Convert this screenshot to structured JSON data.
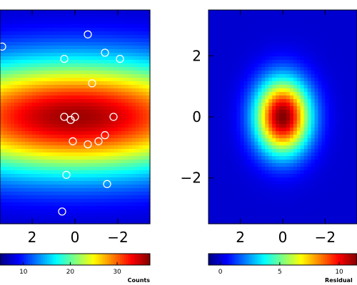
{
  "chart_data": [
    {
      "type": "heatmap",
      "title": "",
      "xlabel": "",
      "ylabel": "",
      "xlim": [
        3.5,
        -3.5
      ],
      "ylim": [
        -3.5,
        3.5
      ],
      "x_ticks": [
        2,
        0,
        -2
      ],
      "x_tick_labels": [
        "2",
        "0",
        "−2"
      ],
      "y_ticks": [],
      "y_tick_labels": [],
      "colormap": "jet",
      "colorbar": {
        "label": "Counts",
        "range": [
          5,
          37
        ],
        "ticks": [
          10,
          20,
          30
        ],
        "tick_labels": [
          "10",
          "20",
          "30"
        ]
      },
      "components": [
        {
          "shape": "elongated-horizontal",
          "x_center": 0.0,
          "y_center": 0.0,
          "x_width": 5.5,
          "y_width": 1.3,
          "peak": 36
        }
      ],
      "background": 7,
      "markers": {
        "shape": "circle",
        "color": "#ffffff",
        "points": [
          {
            "x": 3.4,
            "y": 2.3
          },
          {
            "x": 0.5,
            "y": 1.9
          },
          {
            "x": -0.6,
            "y": 2.7
          },
          {
            "x": -1.4,
            "y": 2.1
          },
          {
            "x": -2.1,
            "y": 1.9
          },
          {
            "x": -0.8,
            "y": 1.1
          },
          {
            "x": 0.5,
            "y": 0.0
          },
          {
            "x": 0.2,
            "y": -0.1
          },
          {
            "x": 0.0,
            "y": 0.0
          },
          {
            "x": -1.8,
            "y": 0.0
          },
          {
            "x": 0.1,
            "y": -0.8
          },
          {
            "x": -0.6,
            "y": -0.9
          },
          {
            "x": -1.1,
            "y": -0.8
          },
          {
            "x": -1.4,
            "y": -0.6
          },
          {
            "x": 0.4,
            "y": -1.9
          },
          {
            "x": -1.5,
            "y": -2.2
          },
          {
            "x": 0.6,
            "y": -3.1
          }
        ]
      }
    },
    {
      "type": "heatmap",
      "title": "",
      "xlabel": "",
      "ylabel": "",
      "xlim": [
        3.5,
        -3.5
      ],
      "ylim": [
        -3.5,
        3.5
      ],
      "x_ticks": [
        2,
        0,
        -2
      ],
      "x_tick_labels": [
        "2",
        "0",
        "−2"
      ],
      "y_ticks": [
        2,
        0,
        -2
      ],
      "y_tick_labels": [
        "2",
        "0",
        "−2"
      ],
      "colormap": "jet",
      "colorbar": {
        "label": "Residual",
        "range": [
          -1,
          11.5
        ],
        "ticks": [
          0,
          5,
          10
        ],
        "tick_labels": [
          "0",
          "5",
          "10"
        ]
      },
      "components": [
        {
          "shape": "compact",
          "x_center": 0.0,
          "y_center": 0.0,
          "x_width": 0.9,
          "y_width": 0.85,
          "peak": 11.5
        }
      ],
      "background": 0,
      "markers": {
        "shape": "circle",
        "color": "#ffffff",
        "points": []
      }
    }
  ]
}
